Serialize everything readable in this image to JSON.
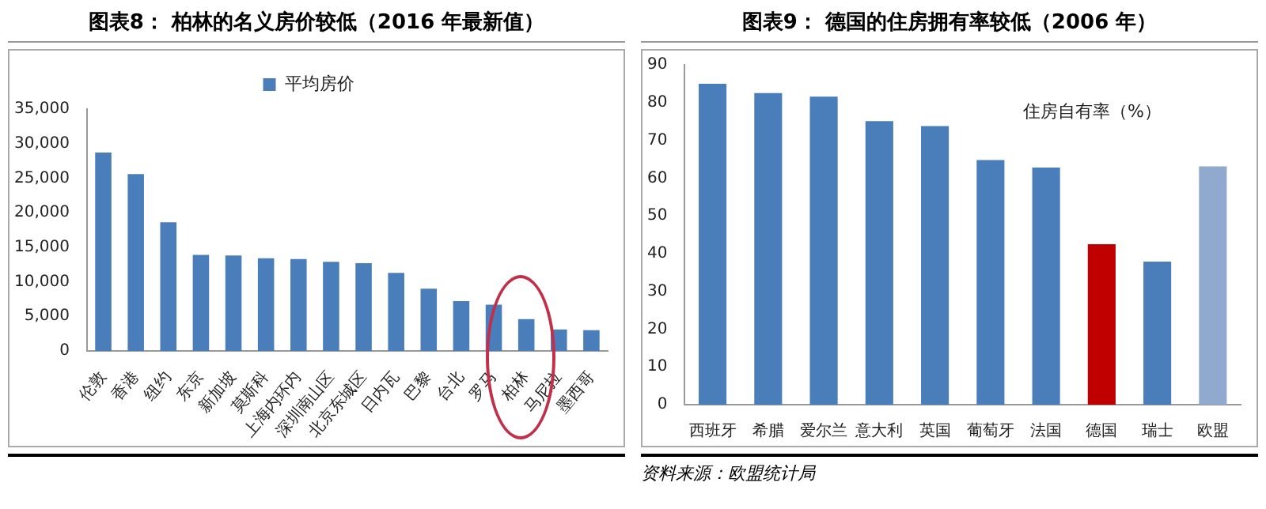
{
  "chart_data": [
    {
      "type": "bar",
      "title": "图表8：  柏林的名义房价较低（2016 年最新值）",
      "categories": [
        "伦敦",
        "香港",
        "纽约",
        "东京",
        "新加坡",
        "莫斯科",
        "上海内环内",
        "深圳南山区",
        "北京东城区",
        "日内瓦",
        "巴黎",
        "台北",
        "罗马",
        "柏林",
        "马尼拉",
        "墨西哥"
      ],
      "series": [
        {
          "name": "平均房价",
          "color": "#4a7ebb",
          "values": [
            28700,
            25600,
            18600,
            13900,
            13800,
            13400,
            13300,
            12900,
            12700,
            11300,
            9000,
            7200,
            6700,
            4600,
            3100,
            3000
          ]
        }
      ],
      "ylim": [
        0,
        35000
      ],
      "yticks": [
        {
          "value": 0,
          "label": "0"
        },
        {
          "value": 5000,
          "label": "5,000"
        },
        {
          "value": 10000,
          "label": "10,000"
        },
        {
          "value": 15000,
          "label": "15,000"
        },
        {
          "value": 20000,
          "label": "20,000"
        },
        {
          "value": 25000,
          "label": "25,000"
        },
        {
          "value": 30000,
          "label": "30,000"
        },
        {
          "value": 35000,
          "label": "35,000"
        }
      ],
      "legend": "top"
    },
    {
      "type": "bar",
      "title": "图表9：  德国的住房拥有率较低（2006 年）",
      "categories": [
        "西班牙",
        "希腊",
        "爱尔兰",
        "意大利",
        "英国",
        "葡萄牙",
        "法国",
        "德国",
        "瑞士",
        "欧盟"
      ],
      "values": [
        85,
        82.5,
        81.6,
        75.1,
        73.8,
        64.8,
        62.8,
        42.5,
        37.9,
        63.1
      ],
      "colors": [
        "#4a7ebb",
        "#4a7ebb",
        "#4a7ebb",
        "#4a7ebb",
        "#4a7ebb",
        "#4a7ebb",
        "#4a7ebb",
        "#c00000",
        "#4a7ebb",
        "#8fa9cf"
      ],
      "ylim": [
        0,
        90
      ],
      "yticks": [
        0,
        10,
        20,
        30,
        40,
        50,
        60,
        70,
        80,
        90
      ],
      "annotations": [
        "住房自有率（%）",
        "资料来源：欧盟统计局"
      ]
    }
  ]
}
